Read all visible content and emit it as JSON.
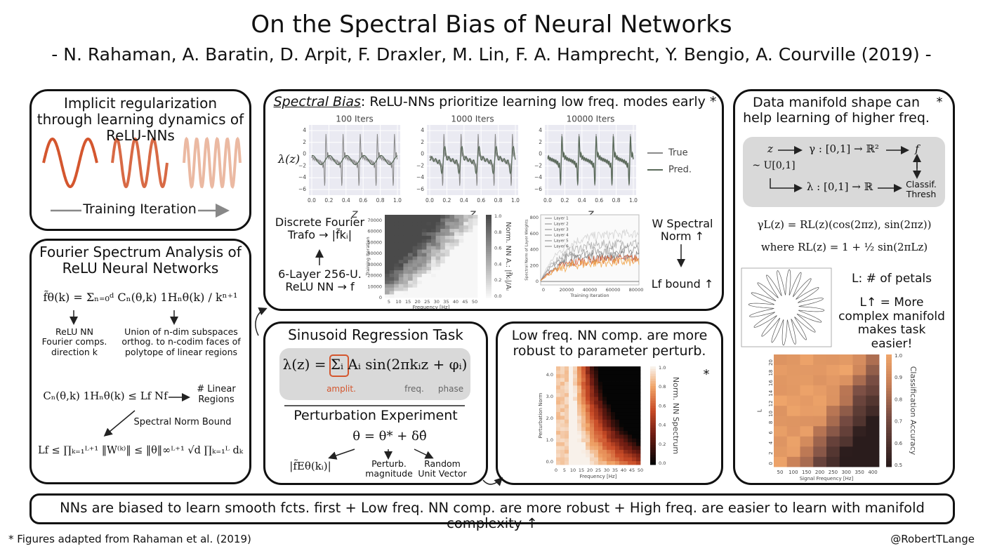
{
  "header": {
    "title": "On the Spectral Bias of Neural Networks",
    "authors": "- N. Rahaman, A. Baratin, D. Arpit, F. Draxler, M. Lin, F. A. Hamprecht, Y. Bengio, A. Courville (2019) -"
  },
  "implicit": {
    "title": "Implicit regularization through learning dynamics of ReLU-NNs",
    "axis": "Training Iteration"
  },
  "fourier": {
    "title": "Fourier Spectrum Analysis of ReLU Neural Networks",
    "equation_spectrum": "f̃θ(k) = Σₙ₌₀ᵈ Cₙ(θ,k) 1Hₙθ(k) / kⁿ⁺¹",
    "note_left": "ReLU NN Fourier comps. direction k",
    "note_right": "Union of n-dim subspaces orthog. to n-codim faces of polytope of linear regions",
    "equation_bound": "Cₙ(θ,k) 1Hₙθ(k) ≤ Lf Nf",
    "linear_regions": "# Linear Regions",
    "spectral_norm_bound": "Spectral Norm Bound",
    "equation_lipschitz": "Lf ≤ ∏ₖ₌₁ᴸ⁺¹ ‖W⁽ᵏ⁾‖ ≤ ‖θ‖∞ᴸ⁺¹ √d ∏ₖ₌₁ᴸ dₖ"
  },
  "spectral": {
    "title_emphasis": "Spectral Bias",
    "title_rest": ": ReLU-NNs prioritize learning low freq. modes early *",
    "plot_titles": [
      "100 Iters",
      "1000 Iters",
      "10000 Iters"
    ],
    "y_label": "λ(z)",
    "x_label": "z",
    "y_ticks": [
      "4",
      "2",
      "0",
      "−2",
      "−4",
      "−6"
    ],
    "x_ticks": [
      "0.0",
      "0.2",
      "0.4",
      "0.6",
      "0.8",
      "1.0"
    ],
    "legend": [
      "True",
      "Pred."
    ],
    "left_top": "Discrete Fourier Trafo → |f̃kᵢ|",
    "left_bottom": "6-Layer 256-U. ReLU NN → f",
    "right_top": "W Spectral Norm ↑",
    "right_bottom": "Lf bound ↑",
    "heatmap": {
      "x_label": "Frequency [Hz]",
      "y_label": "Training Iteration",
      "colorbar_label": "Norm. NN A.: |f̃kᵢ|/Aᵢ",
      "x_ticks": [
        "5",
        "10",
        "15",
        "20",
        "25",
        "30",
        "35",
        "40",
        "45",
        "50"
      ],
      "y_ticks": [
        "70000",
        "60000",
        "50000",
        "40000",
        "30000",
        "20000",
        "10000",
        "0"
      ],
      "colorbar_ticks": [
        "1.0",
        "0.8",
        "0.6",
        "0.4",
        "0.2",
        "0.0"
      ]
    },
    "norms": {
      "x_label": "Training Iteration",
      "y_label": "Spectral Norm of Layer Weights",
      "x_ticks": [
        "0",
        "20000",
        "40000",
        "60000",
        "80000"
      ],
      "y_ticks": [
        "800",
        "600",
        "400",
        "200",
        "0"
      ],
      "legend": [
        "Layer 1",
        "Layer 2",
        "Layer 3",
        "Layer 4",
        "Layer 5",
        "Layer 6"
      ]
    }
  },
  "sinusoid": {
    "title": "Sinusoid Regression Task",
    "equation": "λ(z) = Σᵢ Aᵢ sin(2πkᵢz + φᵢ)",
    "amplitude": "amplit.",
    "frequency": "freq.",
    "phase": "phase",
    "perturbation_title": "Perturbation Experiment",
    "perturbation_equation": "θ = θ* + δθ̂",
    "spectrum": "|f̃Eθ(kᵢ)|",
    "magnitude": "Perturb. magnitude",
    "unit_vector": "Random Unit Vector"
  },
  "lowfreq": {
    "title": "Low freq. NN comp. are more robust to parameter perturb.",
    "star": "*",
    "x_label": "Frequency [Hz]",
    "y_label": "Perturbation Norm",
    "colorbar_label": "Norm. NN Spectrum",
    "x_ticks": [
      "0",
      "5",
      "10",
      "15",
      "20",
      "25",
      "30",
      "35",
      "40",
      "45",
      "50"
    ],
    "y_ticks": [
      "4.0",
      "3.0",
      "2.0",
      "1.0",
      "0.0"
    ],
    "colorbar_ticks": [
      "1.0",
      "0.8",
      "0.6",
      "0.4",
      "0.2",
      "0.0"
    ]
  },
  "manifold": {
    "title": "Data manifold shape can help learning of higher freq.",
    "star": "*",
    "diagram": {
      "z": "z",
      "gamma": "γ : [0,1] → ℝ²",
      "f": "f",
      "uniform": "~ U[0,1]",
      "lambda": "λ : [0,1] → ℝ",
      "classifier": "Classif. Thresh"
    },
    "equation_curve": "γL(z) = RL(z)(cos(2πz), sin(2πz))",
    "equation_radius": "where RL(z) = 1 + ½ sin(2πLz)",
    "petals": "L: # of petals",
    "conclusion": "L↑ = More complex manifold makes task easier!",
    "heatmap": {
      "x_label": "Signal Frequency [Hz]",
      "y_label": "L",
      "colorbar_label": "Classification Accuracy",
      "x_ticks": [
        "50",
        "100",
        "150",
        "200",
        "250",
        "300",
        "350",
        "400"
      ],
      "y_ticks": [
        "20",
        "18",
        "16",
        "14",
        "12",
        "10",
        "8",
        "6",
        "4",
        "2",
        "0"
      ],
      "colorbar_ticks": [
        "1.0",
        "0.9",
        "0.8",
        "0.7",
        "0.6",
        "0.5"
      ]
    }
  },
  "summary": "NNs are biased to learn smooth fcts. first + Low freq. NN comp. are more robust + High freq. are easier to learn with manifold complexity ↑",
  "footer": {
    "note": "* Figures adapted from Rahaman et al. (2019)",
    "handle": "@RobertTLange"
  }
}
